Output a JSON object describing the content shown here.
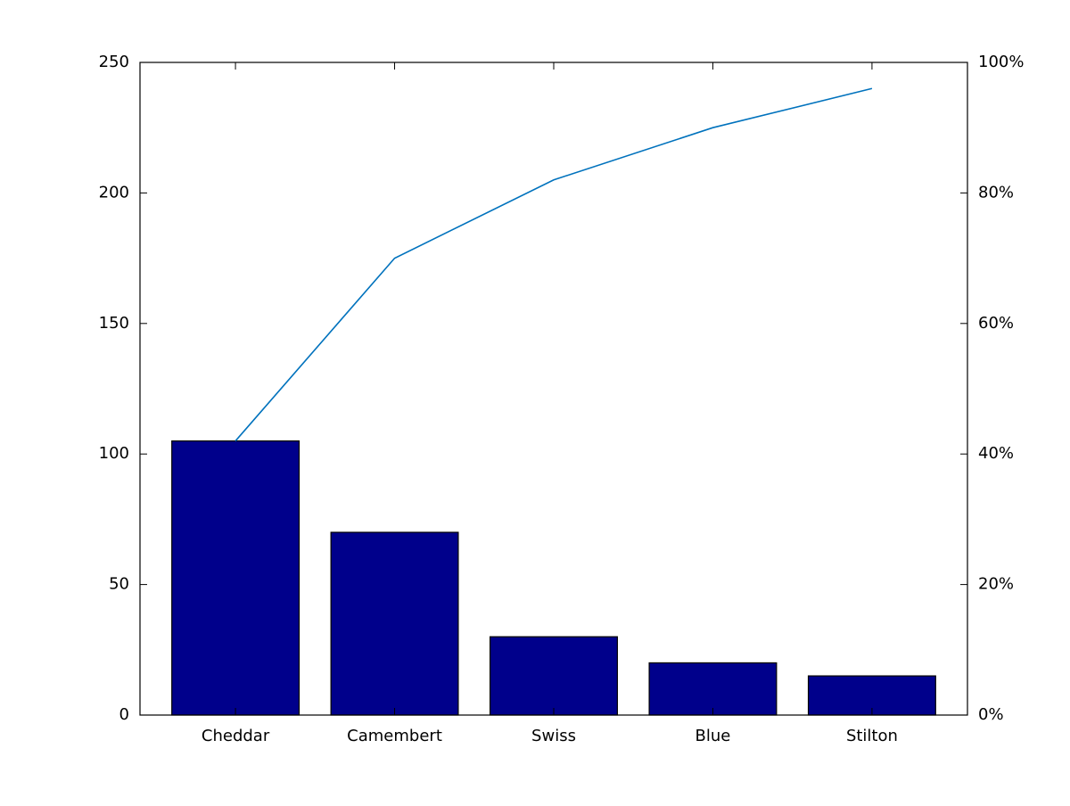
{
  "chart_data": {
    "type": "pareto",
    "categories": [
      "Cheddar",
      "Camembert",
      "Swiss",
      "Blue",
      "Stilton"
    ],
    "series": [
      {
        "color": "#00008b",
        "values": [
          105,
          70,
          30,
          20,
          15
        ]
      },
      {
        "color": "#0072bd",
        "axis": "y2",
        "values": [
          42,
          70,
          82,
          90,
          96
        ]
      }
    ],
    "ylim": [
      0,
      250
    ],
    "yticks": [
      0,
      50,
      100,
      150,
      200,
      250
    ],
    "y2lim": [
      0,
      100
    ],
    "y2ticks": [
      {
        "value": 0,
        "label": "0%"
      },
      {
        "value": 20,
        "label": "20%"
      },
      {
        "value": 40,
        "label": "40%"
      },
      {
        "value": 60,
        "label": "60%"
      },
      {
        "value": 80,
        "label": "80%"
      },
      {
        "value": 100,
        "label": "100%"
      }
    ]
  }
}
